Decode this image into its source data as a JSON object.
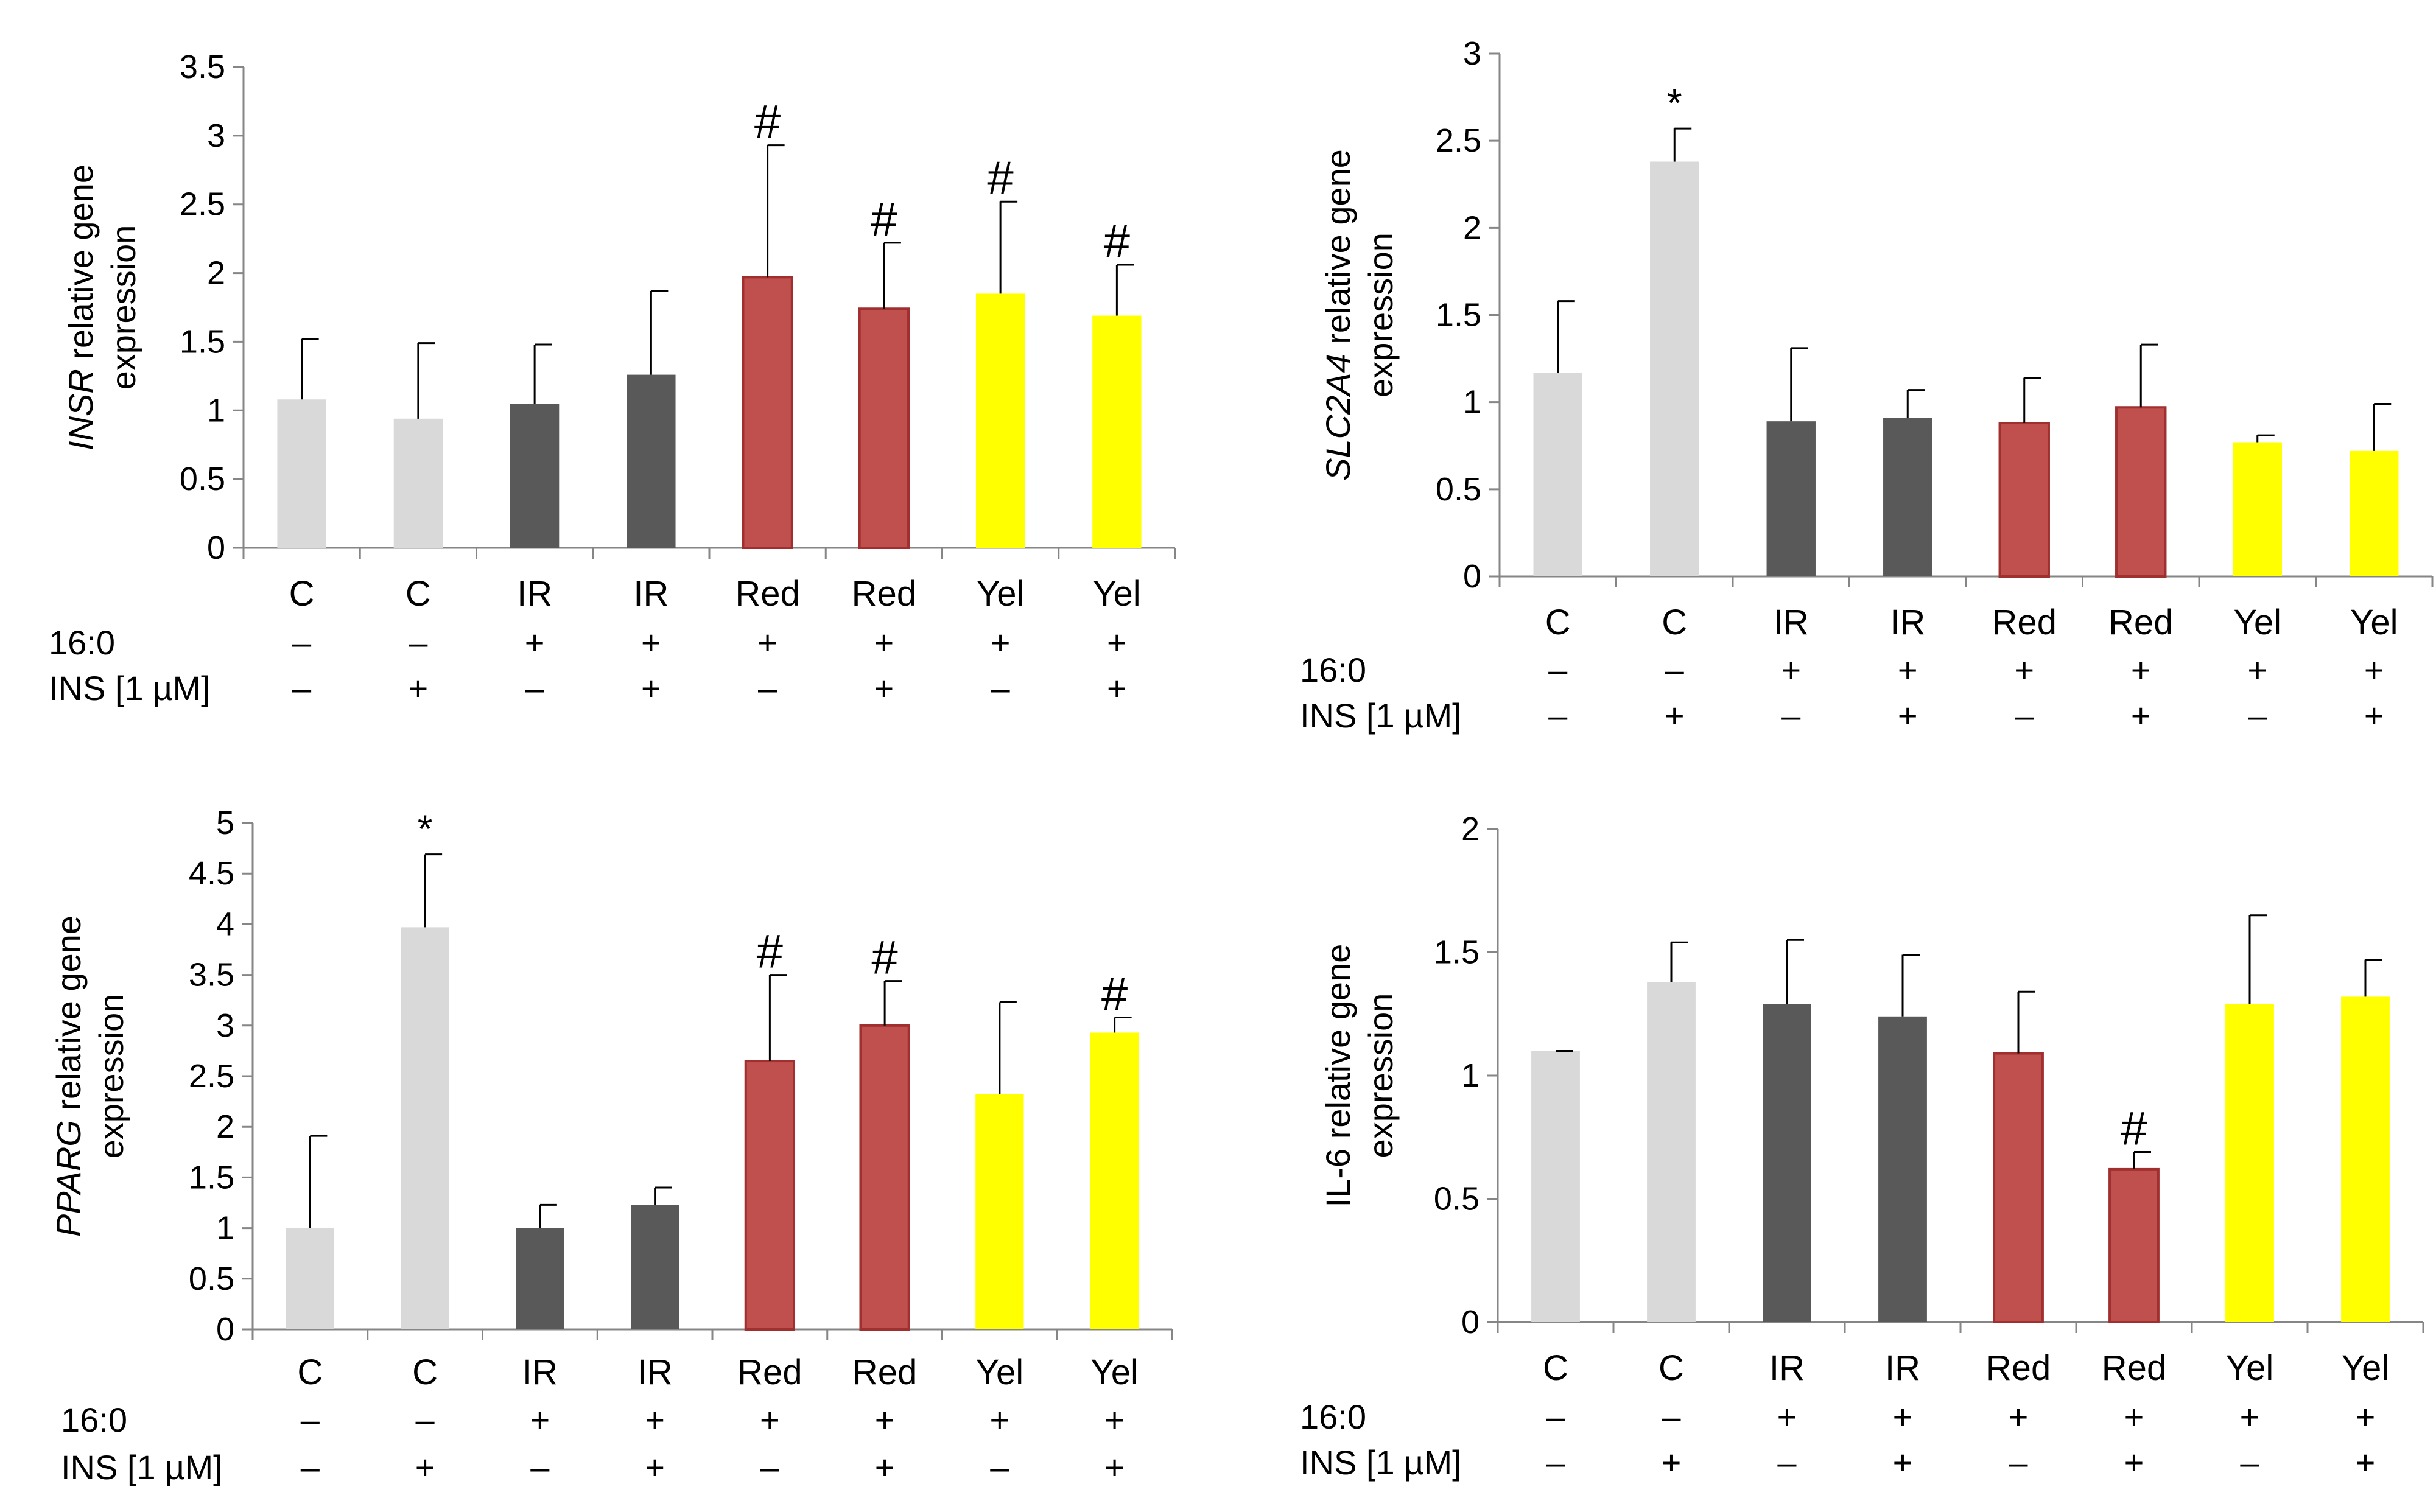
{
  "chart_data": [
    {
      "type": "bar",
      "ylabel_italic": "INSR",
      "ylabel_rest": " relative gene",
      "ylabel_line2": "expression",
      "ylim": [
        0,
        3.5
      ],
      "y_ticks": [
        "0",
        "0.5",
        "1",
        "1.5",
        "2",
        "2.5",
        "3",
        "3.5"
      ],
      "categories": [
        "C",
        "C",
        "IR",
        "IR",
        "Red",
        "Red",
        "Yel",
        "Yel"
      ],
      "values": [
        1.08,
        0.94,
        1.05,
        1.26,
        1.97,
        1.74,
        1.85,
        1.69
      ],
      "errors": [
        0.44,
        0.55,
        0.43,
        0.61,
        0.96,
        0.48,
        0.67,
        0.37
      ],
      "bar_colors": [
        "#d9d9d9",
        "#d9d9d9",
        "#595959",
        "#595959",
        "#c0504d",
        "#c0504d",
        "#ffff00",
        "#ffff00"
      ],
      "annotations": [
        "",
        "",
        "",
        "",
        "#",
        "#",
        "#",
        "#"
      ],
      "row_labels": [
        "16:0",
        "INS [1 µM]"
      ],
      "row1_signs": [
        "–",
        "–",
        "+",
        "+",
        "+",
        "+",
        "+",
        "+"
      ],
      "row2_signs": [
        "–",
        "+",
        "–",
        "+",
        "–",
        "+",
        "–",
        "+"
      ]
    },
    {
      "type": "bar",
      "ylabel_italic": "SLC2A4",
      "ylabel_rest": " relative gene",
      "ylabel_line2": "expression",
      "ylim": [
        0,
        3
      ],
      "y_ticks": [
        "0",
        "0.5",
        "1",
        "1.5",
        "2",
        "2.5",
        "3"
      ],
      "categories": [
        "C",
        "C",
        "IR",
        "IR",
        "Red",
        "Red",
        "Yel",
        "Yel"
      ],
      "values": [
        1.17,
        2.38,
        0.89,
        0.91,
        0.88,
        0.97,
        0.77,
        0.72
      ],
      "errors": [
        0.41,
        0.19,
        0.42,
        0.16,
        0.26,
        0.36,
        0.04,
        0.27
      ],
      "bar_colors": [
        "#d9d9d9",
        "#d9d9d9",
        "#595959",
        "#595959",
        "#c0504d",
        "#c0504d",
        "#ffff00",
        "#ffff00"
      ],
      "annotations": [
        "",
        "*",
        "",
        "",
        "",
        "",
        "",
        ""
      ],
      "row_labels": [
        "16:0",
        "INS [1 µM]"
      ],
      "row1_signs": [
        "–",
        "–",
        "+",
        "+",
        "+",
        "+",
        "+",
        "+"
      ],
      "row2_signs": [
        "–",
        "+",
        "–",
        "+",
        "–",
        "+",
        "–",
        "+"
      ]
    },
    {
      "type": "bar",
      "ylabel_italic": "PPARG",
      "ylabel_rest": " relative gene",
      "ylabel_line2": "expression",
      "ylim": [
        0,
        5
      ],
      "y_ticks": [
        "0",
        "0.5",
        "1",
        "1.5",
        "2",
        "2.5",
        "3",
        "3.5",
        "4",
        "4.5",
        "5"
      ],
      "categories": [
        "C",
        "C",
        "IR",
        "IR",
        "Red",
        "Red",
        "Yel",
        "Yel"
      ],
      "values": [
        1.0,
        3.97,
        1.0,
        1.23,
        2.65,
        3.0,
        2.32,
        2.93
      ],
      "errors": [
        0.91,
        0.72,
        0.23,
        0.17,
        0.85,
        0.44,
        0.91,
        0.15
      ],
      "bar_colors": [
        "#d9d9d9",
        "#d9d9d9",
        "#595959",
        "#595959",
        "#c0504d",
        "#c0504d",
        "#ffff00",
        "#ffff00"
      ],
      "annotations": [
        "",
        "*",
        "",
        "",
        "#",
        "#",
        "",
        "#"
      ],
      "row_labels": [
        "16:0",
        "INS [1 µM]"
      ],
      "row1_signs": [
        "–",
        "–",
        "+",
        "+",
        "+",
        "+",
        "+",
        "+"
      ],
      "row2_signs": [
        "–",
        "+",
        "–",
        "+",
        "–",
        "+",
        "–",
        "+"
      ]
    },
    {
      "type": "bar",
      "ylabel_italic": "",
      "ylabel_rest": "IL-6 relative gene",
      "ylabel_line2": "expression",
      "ylim": [
        0,
        2
      ],
      "y_ticks": [
        "0",
        "0.5",
        "1",
        "1.5",
        "2"
      ],
      "categories": [
        "C",
        "C",
        "IR",
        "IR",
        "Red",
        "Red",
        "Yel",
        "Yel"
      ],
      "values": [
        1.1,
        1.38,
        1.29,
        1.24,
        1.09,
        0.62,
        1.29,
        1.32
      ],
      "errors": [
        0.0,
        0.16,
        0.26,
        0.25,
        0.25,
        0.07,
        0.36,
        0.15
      ],
      "bar_colors": [
        "#d9d9d9",
        "#d9d9d9",
        "#595959",
        "#595959",
        "#c0504d",
        "#c0504d",
        "#ffff00",
        "#ffff00"
      ],
      "annotations": [
        "",
        "",
        "",
        "",
        "",
        "#",
        "",
        ""
      ],
      "row_labels": [
        "16:0",
        "INS [1 µM]"
      ],
      "row1_signs": [
        "–",
        "–",
        "+",
        "+",
        "+",
        "+",
        "+",
        "+"
      ],
      "row2_signs": [
        "–",
        "+",
        "–",
        "+",
        "–",
        "+",
        "–",
        "+"
      ]
    }
  ]
}
